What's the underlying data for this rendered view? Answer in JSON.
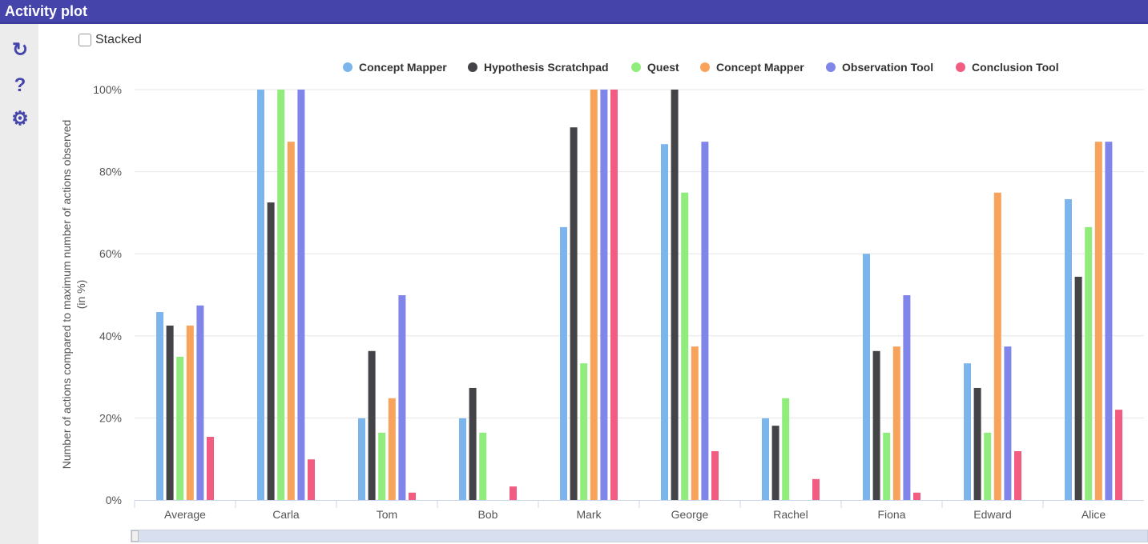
{
  "header": {
    "title": "Activity plot"
  },
  "sidebar": {
    "icons": [
      "refresh-icon",
      "help-icon",
      "gear-icon"
    ]
  },
  "controls": {
    "stacked_label": "Stacked",
    "stacked_checked": false
  },
  "chart_data": {
    "type": "bar",
    "ylabel": "Number of actions compared to maximum number of actions observed (in %)",
    "ylabel_lines": [
      "Number of actions compared to maximum number of actions observed",
      "(in %)"
    ],
    "ylim": [
      0,
      100
    ],
    "yticks": [
      "0%",
      "20%",
      "40%",
      "60%",
      "80%",
      "100%"
    ],
    "grid": true,
    "legend": "top",
    "categories": [
      "Average",
      "Carla",
      "Tom",
      "Bob",
      "Mark",
      "George",
      "Rachel",
      "Fiona",
      "Edward",
      "Alice"
    ],
    "series": [
      {
        "name": "Concept Mapper",
        "color": "#7cb5ec",
        "values": [
          45.8,
          100,
          19.9,
          19.9,
          66.5,
          86.7,
          19.9,
          60.0,
          33.3,
          73.3
        ]
      },
      {
        "name": "Hypothesis Scratchpad",
        "color": "#434348",
        "values": [
          42.5,
          72.5,
          36.3,
          27.3,
          90.8,
          100,
          18.1,
          36.3,
          27.3,
          54.4
        ]
      },
      {
        "name": "Quest",
        "color": "#90ed7d",
        "values": [
          34.9,
          100,
          16.4,
          16.4,
          33.3,
          74.9,
          24.8,
          16.4,
          16.4,
          66.5
        ]
      },
      {
        "name": "Concept Mapper",
        "color": "#f7a35c",
        "values": [
          42.5,
          87.3,
          24.8,
          0,
          100,
          37.4,
          0,
          37.4,
          74.9,
          87.3
        ]
      },
      {
        "name": "Observation Tool",
        "color": "#8085e9",
        "values": [
          47.4,
          100,
          49.9,
          0,
          100,
          87.3,
          0,
          49.9,
          37.4,
          87.3
        ]
      },
      {
        "name": "Conclusion Tool",
        "color": "#f15c80",
        "values": [
          15.4,
          9.9,
          1.8,
          3.3,
          100,
          11.9,
          5.1,
          1.8,
          11.9,
          22.0
        ]
      }
    ]
  }
}
